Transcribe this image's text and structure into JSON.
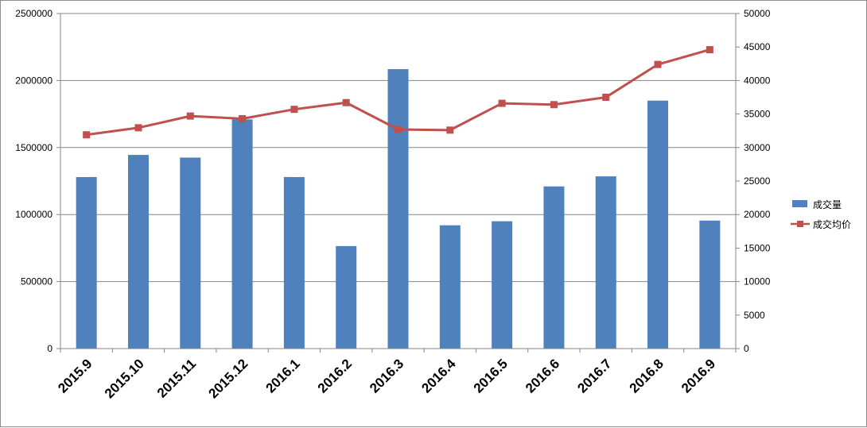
{
  "chart_data": {
    "type": "bar",
    "categories": [
      "2015.9",
      "2015.10",
      "2015.11",
      "2015.12",
      "2016.1",
      "2016.2",
      "2016.3",
      "2016.4",
      "2016.5",
      "2016.6",
      "2016.7",
      "2016.8",
      "2016.9"
    ],
    "series": [
      {
        "name": "成交量",
        "type": "bar",
        "axis": "left",
        "color": "#4f81bd",
        "values": [
          1280000,
          1445000,
          1425000,
          1710000,
          1280000,
          765000,
          2085000,
          920000,
          950000,
          1210000,
          1285000,
          1850000,
          955000
        ]
      },
      {
        "name": "成交均价",
        "type": "line",
        "axis": "right",
        "color": "#c0504d",
        "values": [
          31900,
          32950,
          34700,
          34300,
          35700,
          36700,
          32700,
          32600,
          36600,
          36400,
          37500,
          42400,
          44600
        ]
      }
    ],
    "y_left": {
      "min": 0,
      "max": 2500000,
      "step": 500000,
      "ticks": [
        "0",
        "500000",
        "1000000",
        "1500000",
        "2000000",
        "2500000"
      ]
    },
    "y_right": {
      "min": 0,
      "max": 50000,
      "step": 5000,
      "ticks": [
        "0",
        "5000",
        "10000",
        "15000",
        "20000",
        "25000",
        "30000",
        "35000",
        "40000",
        "45000",
        "50000"
      ]
    },
    "grid": true,
    "legend": "right",
    "title": "",
    "xlabel": "",
    "ylabel": ""
  }
}
